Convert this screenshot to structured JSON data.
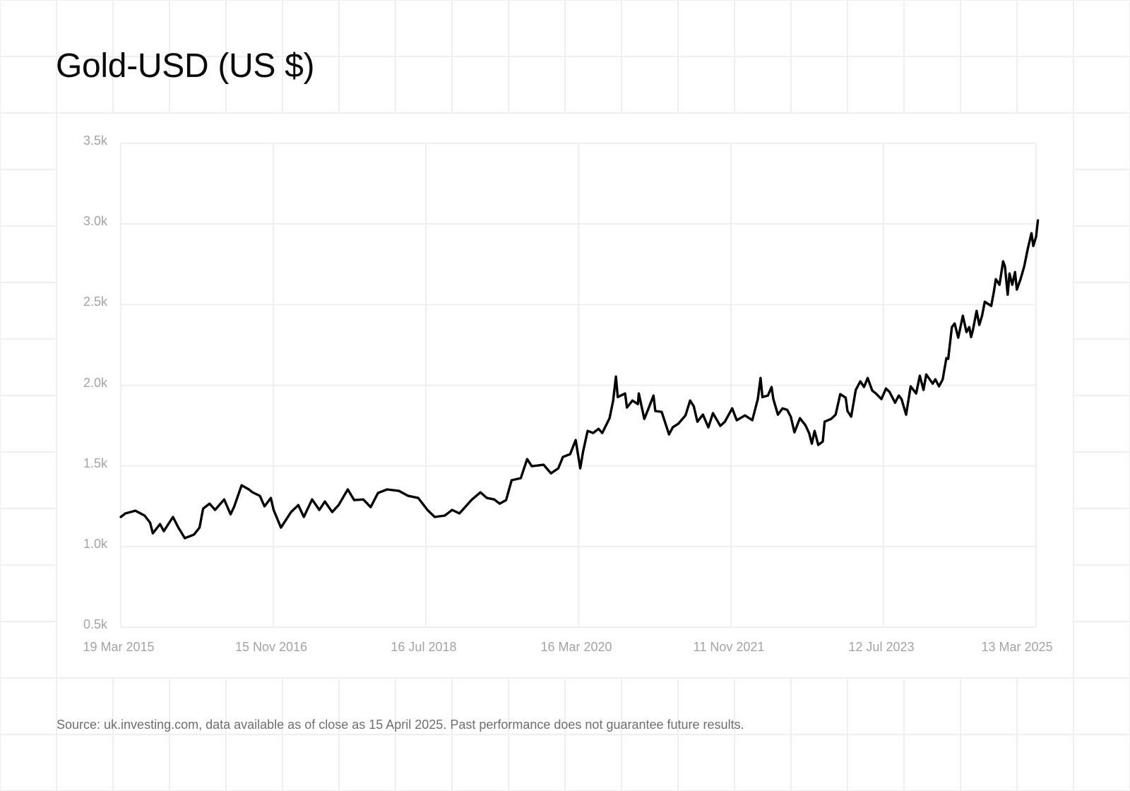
{
  "title": "Gold-USD (US $)",
  "source_note": "Source: uk.investing.com, data available as of close as 15 April 2025. Past performance does not guarantee future results.",
  "colors": {
    "line": "#000000",
    "gridline": "#efefef",
    "axis_label": "#a3a3a3",
    "source_text": "#6e6e6e",
    "title": "#0a0a0a"
  },
  "chart_data": {
    "type": "line",
    "title": "Gold-USD (US $)",
    "xlabel": "",
    "ylabel": "",
    "ylim": [
      500,
      3500
    ],
    "y_ticks": [
      500,
      1000,
      1500,
      2000,
      2500,
      3000,
      3500
    ],
    "y_tick_labels": [
      "0.5k",
      "1.0k",
      "1.5k",
      "2.0k",
      "2.5k",
      "3.0k",
      "3.5k"
    ],
    "x_range": [
      "19 Mar 2015",
      "13 Mar 2025"
    ],
    "x_ticks": [
      0,
      0.1667,
      0.3333,
      0.5,
      0.6667,
      0.8333,
      1.0
    ],
    "x_tick_labels": [
      "19 Mar 2015",
      "15 Nov 2016",
      "16 Jul 2018",
      "16 Mar 2020",
      "11 Nov 2021",
      "12 Jul 2023",
      "13 Mar 2025"
    ],
    "grid": true,
    "legend": null,
    "series": [
      {
        "name": "Gold-USD",
        "x_note": "x is fraction of time range from 19 Mar 2015 (0) to 13 Mar 2025 (1)",
        "x": [
          0,
          0.005,
          0.016,
          0.026,
          0.032,
          0.035,
          0.043,
          0.047,
          0.057,
          0.063,
          0.07,
          0.08,
          0.086,
          0.09,
          0.097,
          0.103,
          0.113,
          0.12,
          0.124,
          0.132,
          0.14,
          0.144,
          0.152,
          0.157,
          0.164,
          0.167,
          0.175,
          0.186,
          0.194,
          0.2,
          0.209,
          0.217,
          0.223,
          0.231,
          0.238,
          0.248,
          0.255,
          0.265,
          0.273,
          0.281,
          0.291,
          0.304,
          0.314,
          0.325,
          0.335,
          0.343,
          0.354,
          0.362,
          0.37,
          0.383,
          0.393,
          0.4,
          0.408,
          0.414,
          0.421,
          0.427,
          0.437,
          0.444,
          0.449,
          0.462,
          0.47,
          0.478,
          0.483,
          0.491,
          0.497,
          0.502,
          0.505,
          0.51,
          0.516,
          0.522,
          0.526,
          0.534,
          0.538,
          0.541,
          0.543,
          0.551,
          0.553,
          0.559,
          0.565,
          0.566,
          0.572,
          0.576,
          0.582,
          0.584,
          0.591,
          0.599,
          0.603,
          0.609,
          0.617,
          0.622,
          0.626,
          0.63,
          0.636,
          0.642,
          0.647,
          0.655,
          0.66,
          0.668,
          0.673,
          0.682,
          0.69,
          0.696,
          0.699,
          0.701,
          0.707,
          0.711,
          0.713,
          0.718,
          0.723,
          0.728,
          0.732,
          0.736,
          0.742,
          0.748,
          0.752,
          0.755,
          0.758,
          0.762,
          0.767,
          0.769,
          0.776,
          0.781,
          0.786,
          0.792,
          0.794,
          0.798,
          0.803,
          0.808,
          0.812,
          0.816,
          0.821,
          0.825,
          0.831,
          0.836,
          0.84,
          0.846,
          0.85,
          0.853,
          0.858,
          0.863,
          0.869,
          0.873,
          0.877,
          0.88,
          0.887,
          0.89,
          0.894,
          0.898,
          0.902,
          0.904,
          0.908,
          0.911,
          0.915,
          0.92,
          0.924,
          0.927,
          0.929,
          0.931,
          0.935,
          0.938,
          0.941,
          0.944,
          0.951,
          0.954,
          0.956,
          0.96,
          0.964,
          0.966,
          0.969,
          0.971,
          0.974,
          0.977,
          0.979,
          0.983,
          0.987,
          0.991,
          0.995,
          0.997,
          1.0,
          1.002
        ],
        "values": [
          1183,
          1205,
          1222,
          1192,
          1148,
          1082,
          1139,
          1095,
          1183,
          1117,
          1052,
          1074,
          1117,
          1235,
          1266,
          1227,
          1292,
          1200,
          1249,
          1380,
          1354,
          1336,
          1314,
          1249,
          1301,
          1227,
          1117,
          1214,
          1257,
          1183,
          1292,
          1227,
          1279,
          1214,
          1257,
          1354,
          1288,
          1292,
          1244,
          1332,
          1354,
          1345,
          1314,
          1301,
          1227,
          1183,
          1192,
          1227,
          1205,
          1288,
          1336,
          1301,
          1292,
          1266,
          1288,
          1411,
          1424,
          1542,
          1498,
          1507,
          1454,
          1485,
          1555,
          1573,
          1660,
          1485,
          1586,
          1717,
          1704,
          1730,
          1704,
          1796,
          1905,
          2054,
          1927,
          1949,
          1862,
          1905,
          1883,
          1949,
          1791,
          1848,
          1936,
          1840,
          1835,
          1695,
          1739,
          1761,
          1813,
          1905,
          1870,
          1774,
          1818,
          1739,
          1827,
          1748,
          1774,
          1857,
          1783,
          1813,
          1783,
          1914,
          2045,
          1927,
          1936,
          1989,
          1914,
          1818,
          1857,
          1848,
          1805,
          1708,
          1796,
          1752,
          1704,
          1638,
          1717,
          1630,
          1651,
          1774,
          1791,
          1818,
          1945,
          1923,
          1840,
          1805,
          1971,
          2024,
          1989,
          2045,
          1967,
          1949,
          1914,
          1980,
          1958,
          1892,
          1936,
          1914,
          1818,
          1993,
          1949,
          2059,
          1971,
          2067,
          2010,
          2037,
          1993,
          2037,
          2168,
          2164,
          2361,
          2383,
          2295,
          2431,
          2330,
          2361,
          2299,
          2343,
          2461,
          2374,
          2431,
          2518,
          2492,
          2584,
          2658,
          2623,
          2768,
          2737,
          2562,
          2693,
          2623,
          2702,
          2593,
          2658,
          2737,
          2847,
          2943,
          2864,
          2921,
          3022
        ]
      }
    ]
  }
}
